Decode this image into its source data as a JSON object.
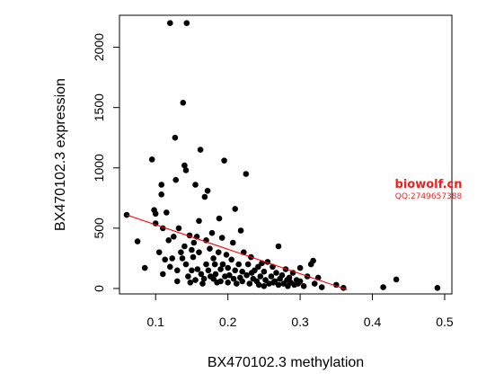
{
  "chart_data": {
    "type": "scatter",
    "title": "",
    "xlabel": "BX470102.3 methylation",
    "ylabel": "BX470102.3 expression",
    "xlim": [
      0.05,
      0.51
    ],
    "ylim": [
      -45,
      2265
    ],
    "xticks": [
      0.1,
      0.2,
      0.3,
      0.4,
      0.5
    ],
    "yticks": [
      0,
      500,
      1000,
      1500,
      2000
    ],
    "xtick_labels": [
      "0.1",
      "0.2",
      "0.3",
      "0.4",
      "0.5"
    ],
    "ytick_labels": [
      "0",
      "500",
      "1000",
      "1500",
      "2000"
    ],
    "grid": false,
    "point_color": "#000000",
    "regression": {
      "color": "#ff0000",
      "x": [
        0.06,
        0.365
      ],
      "y": [
        610,
        -10
      ]
    },
    "points": [
      [
        0.06,
        610
      ],
      [
        0.075,
        390
      ],
      [
        0.085,
        170
      ],
      [
        0.095,
        1070
      ],
      [
        0.098,
        650
      ],
      [
        0.1,
        540
      ],
      [
        0.1,
        620
      ],
      [
        0.105,
        300
      ],
      [
        0.108,
        860
      ],
      [
        0.108,
        780
      ],
      [
        0.11,
        500
      ],
      [
        0.11,
        120
      ],
      [
        0.113,
        240
      ],
      [
        0.115,
        630
      ],
      [
        0.118,
        400
      ],
      [
        0.12,
        180
      ],
      [
        0.12,
        2200
      ],
      [
        0.123,
        250
      ],
      [
        0.125,
        430
      ],
      [
        0.127,
        1250
      ],
      [
        0.128,
        900
      ],
      [
        0.13,
        150
      ],
      [
        0.13,
        60
      ],
      [
        0.132,
        500
      ],
      [
        0.135,
        300
      ],
      [
        0.137,
        250
      ],
      [
        0.138,
        1540
      ],
      [
        0.14,
        1020
      ],
      [
        0.14,
        350
      ],
      [
        0.142,
        980
      ],
      [
        0.142,
        200
      ],
      [
        0.143,
        2200
      ],
      [
        0.145,
        100
      ],
      [
        0.147,
        440
      ],
      [
        0.148,
        50
      ],
      [
        0.15,
        320
      ],
      [
        0.15,
        150
      ],
      [
        0.152,
        260
      ],
      [
        0.153,
        380
      ],
      [
        0.155,
        70
      ],
      [
        0.155,
        860
      ],
      [
        0.157,
        430
      ],
      [
        0.158,
        160
      ],
      [
        0.16,
        560
      ],
      [
        0.16,
        300
      ],
      [
        0.162,
        1150
      ],
      [
        0.163,
        120
      ],
      [
        0.165,
        40
      ],
      [
        0.167,
        80
      ],
      [
        0.168,
        760
      ],
      [
        0.17,
        200
      ],
      [
        0.17,
        400
      ],
      [
        0.172,
        810
      ],
      [
        0.173,
        150
      ],
      [
        0.175,
        330
      ],
      [
        0.176,
        100
      ],
      [
        0.178,
        460
      ],
      [
        0.18,
        250
      ],
      [
        0.18,
        80
      ],
      [
        0.182,
        200
      ],
      [
        0.183,
        120
      ],
      [
        0.185,
        50
      ],
      [
        0.187,
        300
      ],
      [
        0.188,
        580
      ],
      [
        0.19,
        160
      ],
      [
        0.19,
        60
      ],
      [
        0.192,
        420
      ],
      [
        0.193,
        200
      ],
      [
        0.195,
        1060
      ],
      [
        0.196,
        100
      ],
      [
        0.198,
        280
      ],
      [
        0.2,
        170
      ],
      [
        0.2,
        50
      ],
      [
        0.202,
        110
      ],
      [
        0.205,
        240
      ],
      [
        0.207,
        380
      ],
      [
        0.208,
        80
      ],
      [
        0.21,
        660
      ],
      [
        0.21,
        150
      ],
      [
        0.212,
        40
      ],
      [
        0.215,
        200
      ],
      [
        0.217,
        90
      ],
      [
        0.218,
        480
      ],
      [
        0.22,
        140
      ],
      [
        0.22,
        60
      ],
      [
        0.222,
        300
      ],
      [
        0.225,
        950
      ],
      [
        0.226,
        110
      ],
      [
        0.228,
        200
      ],
      [
        0.23,
        40
      ],
      [
        0.232,
        260
      ],
      [
        0.233,
        130
      ],
      [
        0.235,
        80
      ],
      [
        0.237,
        150
      ],
      [
        0.24,
        60
      ],
      [
        0.242,
        180
      ],
      [
        0.243,
        30
      ],
      [
        0.245,
        100
      ],
      [
        0.247,
        210
      ],
      [
        0.25,
        20
      ],
      [
        0.25,
        140
      ],
      [
        0.252,
        70
      ],
      [
        0.255,
        220
      ],
      [
        0.257,
        40
      ],
      [
        0.26,
        100
      ],
      [
        0.262,
        180
      ],
      [
        0.263,
        50
      ],
      [
        0.265,
        60
      ],
      [
        0.267,
        130
      ],
      [
        0.27,
        350
      ],
      [
        0.27,
        30
      ],
      [
        0.272,
        80
      ],
      [
        0.275,
        110
      ],
      [
        0.277,
        40
      ],
      [
        0.28,
        160
      ],
      [
        0.282,
        70
      ],
      [
        0.283,
        20
      ],
      [
        0.285,
        90
      ],
      [
        0.287,
        50
      ],
      [
        0.29,
        130
      ],
      [
        0.292,
        30
      ],
      [
        0.295,
        70
      ],
      [
        0.297,
        40
      ],
      [
        0.3,
        170
      ],
      [
        0.3,
        60
      ],
      [
        0.305,
        20
      ],
      [
        0.31,
        100
      ],
      [
        0.315,
        200
      ],
      [
        0.318,
        230
      ],
      [
        0.32,
        40
      ],
      [
        0.325,
        90
      ],
      [
        0.33,
        10
      ],
      [
        0.35,
        30
      ],
      [
        0.36,
        5
      ],
      [
        0.415,
        10
      ],
      [
        0.433,
        75
      ],
      [
        0.49,
        5
      ]
    ]
  },
  "watermark": {
    "line1": "biowolf.cn",
    "line2": "QQ:2749657388"
  }
}
